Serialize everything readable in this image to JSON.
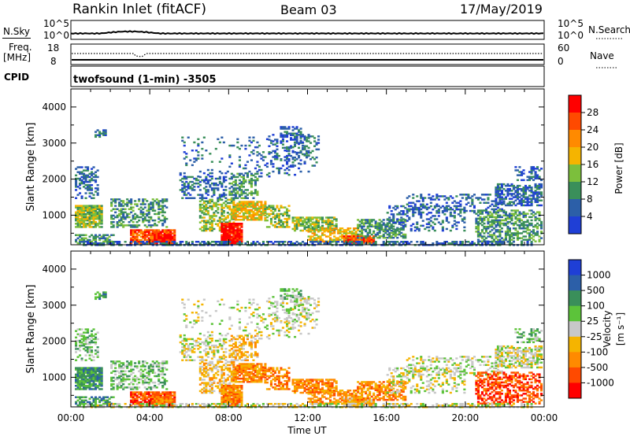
{
  "header": {
    "station": "Rankin Inlet (fitACF)",
    "beam": "Beam 03",
    "date": "17/May/2019"
  },
  "status": {
    "nsky_label": "N.Sky",
    "nsky_ticks": [
      "10^5",
      "10^0"
    ],
    "nsearch_label": "N.Search",
    "nsearch_ticks": [
      "10^5",
      "10^0"
    ],
    "freq_label": "Freq.",
    "freq_unit": "[MHz]",
    "freq_ticks": [
      "18",
      "8"
    ],
    "nave_label": "Nave",
    "nave_ticks": [
      "60",
      "0"
    ],
    "cpid_label": "CPID",
    "cpid_text": "twofsound (1-min) -3505"
  },
  "chart_data": [
    {
      "type": "heatmap",
      "name": "power-panel",
      "ylabel": "Slant Range [km]",
      "yticks": [
        "4000",
        "3000",
        "2000",
        "1000"
      ],
      "yrange": [
        180,
        4500
      ],
      "x_ticks": [
        "00:00",
        "04:00",
        "08:00",
        "12:00",
        "16:00",
        "20:00",
        "00:00"
      ],
      "colorbar": {
        "label": "Power [dB]",
        "ticks": [
          "28",
          "24",
          "20",
          "16",
          "12",
          "8",
          "4"
        ],
        "colors": [
          "#ff0000",
          "#ff4a00",
          "#ff8a00",
          "#f5b400",
          "#7cbf3c",
          "#3a8f5a",
          "#2c5fa8",
          "#1f3fd6"
        ]
      }
    },
    {
      "type": "heatmap",
      "name": "velocity-panel",
      "ylabel": "Slant Range [km]",
      "yticks": [
        "4000",
        "3000",
        "2000",
        "1000"
      ],
      "yrange": [
        180,
        4500
      ],
      "x_ticks": [
        "00:00",
        "04:00",
        "08:00",
        "12:00",
        "16:00",
        "20:00",
        "00:00"
      ],
      "xlabel": "Time UT",
      "colorbar": {
        "label_main": "Velocity",
        "label_unit": "[m s⁻¹]",
        "ticks": [
          "1000",
          "500",
          "100",
          "25",
          "-25",
          "-100",
          "-500",
          "-1000"
        ],
        "colors": [
          "#1f3fd6",
          "#2c5fa8",
          "#3a8f5a",
          "#5cc33a",
          "#c8c8c8",
          "#f5b400",
          "#ff8a00",
          "#ff4a00",
          "#ff0000"
        ]
      }
    }
  ]
}
